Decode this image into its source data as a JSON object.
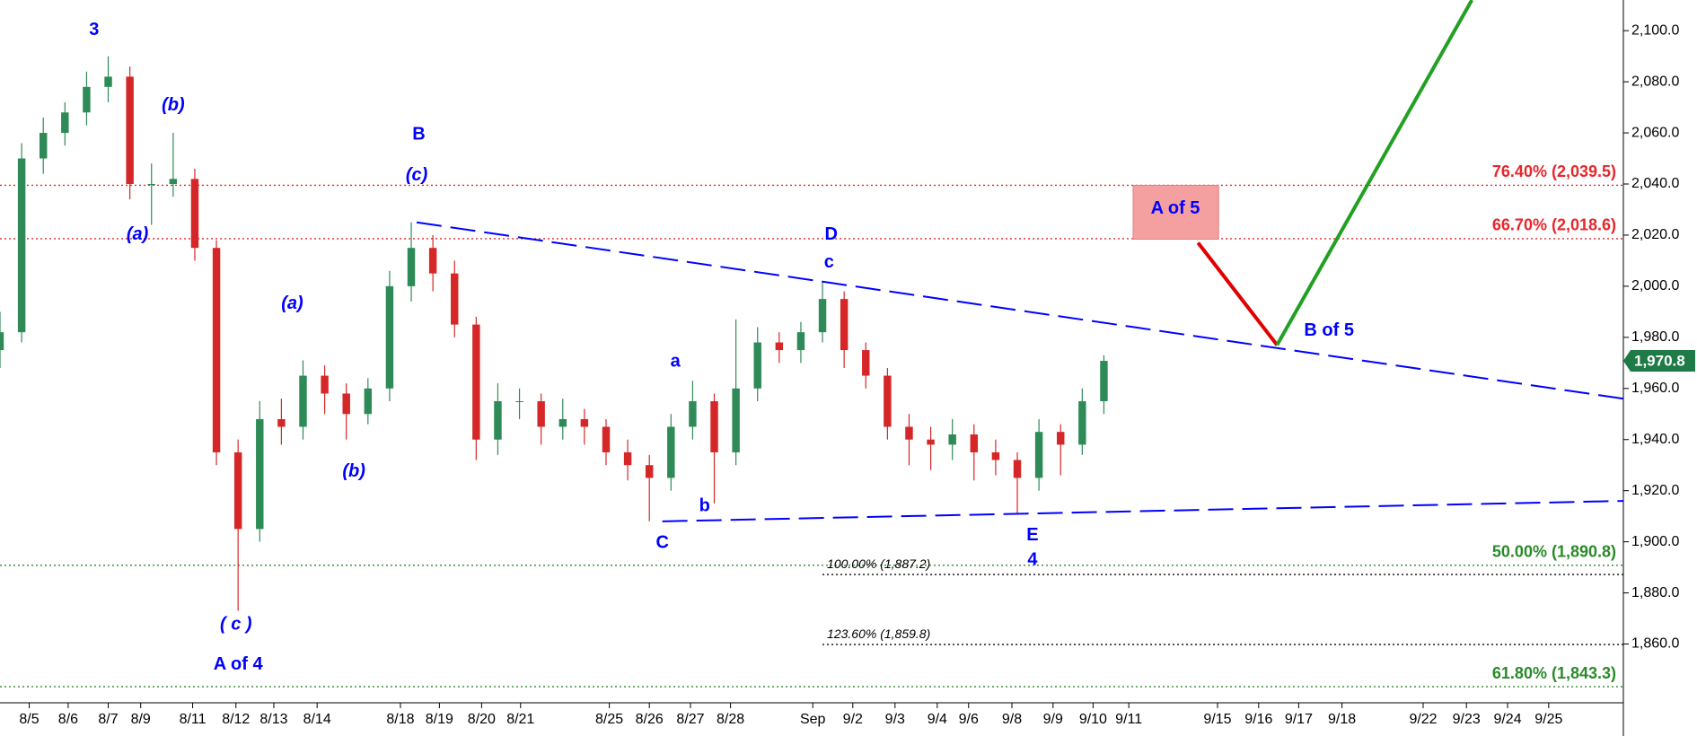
{
  "chart_data": {
    "type": "candlestick",
    "up_color": "#2e8b57",
    "down_color": "#d62728",
    "xlim": [
      0,
      150
    ],
    "xticks": [
      {
        "value": 2.7,
        "label": "8/5"
      },
      {
        "value": 6.3,
        "label": "8/6"
      },
      {
        "value": 10,
        "label": "8/7"
      },
      {
        "value": 13,
        "label": "8/9"
      },
      {
        "value": 17.8,
        "label": "8/11"
      },
      {
        "value": 21.8,
        "label": "8/12"
      },
      {
        "value": 25.3,
        "label": "8/13"
      },
      {
        "value": 29.3,
        "label": "8/14"
      },
      {
        "value": 37,
        "label": "8/18"
      },
      {
        "value": 40.6,
        "label": "8/19"
      },
      {
        "value": 44.5,
        "label": "8/20"
      },
      {
        "value": 48.1,
        "label": "8/21"
      },
      {
        "value": 56.3,
        "label": "8/25"
      },
      {
        "value": 60,
        "label": "8/26"
      },
      {
        "value": 63.8,
        "label": "8/27"
      },
      {
        "value": 67.5,
        "label": "8/28"
      },
      {
        "value": 75.1,
        "label": "Sep"
      },
      {
        "value": 78.8,
        "label": "9/2"
      },
      {
        "value": 82.7,
        "label": "9/3"
      },
      {
        "value": 86.6,
        "label": "9/4"
      },
      {
        "value": 89.5,
        "label": "9/6"
      },
      {
        "value": 93.5,
        "label": "9/8"
      },
      {
        "value": 97.3,
        "label": "9/9"
      },
      {
        "value": 101,
        "label": "9/10"
      },
      {
        "value": 104.3,
        "label": "9/11"
      },
      {
        "value": 112.5,
        "label": "9/15"
      },
      {
        "value": 116.3,
        "label": "9/16"
      },
      {
        "value": 120,
        "label": "9/17"
      },
      {
        "value": 124,
        "label": "9/18"
      },
      {
        "value": 131.5,
        "label": "9/22"
      },
      {
        "value": 135.5,
        "label": "9/23"
      },
      {
        "value": 139.3,
        "label": "9/24"
      },
      {
        "value": 143.1,
        "label": "9/25"
      }
    ],
    "ylim": [
      1837,
      2112
    ],
    "yticks": [
      {
        "value": 1860,
        "label": "1,860.0"
      },
      {
        "value": 1880,
        "label": "1,880.0"
      },
      {
        "value": 1900,
        "label": "1,900.0"
      },
      {
        "value": 1920,
        "label": "1,920.0"
      },
      {
        "value": 1940,
        "label": "1,940.0"
      },
      {
        "value": 1960,
        "label": "1,960.0"
      },
      {
        "value": 1980,
        "label": "1,980.0"
      },
      {
        "value": 2000,
        "label": "2,000.0"
      },
      {
        "value": 2020,
        "label": "2,020.0"
      },
      {
        "value": 2040,
        "label": "2,040.0"
      },
      {
        "value": 2060,
        "label": "2,060.0"
      },
      {
        "value": 2080,
        "label": "2,080.0"
      },
      {
        "value": 2100,
        "label": "2,100.0"
      }
    ],
    "x": [
      0,
      2,
      4,
      6,
      8,
      10,
      12,
      14,
      16,
      18,
      20,
      22,
      24,
      26,
      28,
      30,
      32,
      34,
      36,
      38,
      40,
      42,
      44,
      46,
      48,
      50,
      52,
      54,
      56,
      58,
      60,
      62,
      64,
      66,
      68,
      70,
      72,
      74,
      76,
      78,
      80,
      82,
      84,
      86,
      88,
      90,
      92,
      94,
      96,
      98,
      100,
      102
    ],
    "open": [
      1975,
      1982,
      2050,
      2060,
      2068,
      2078,
      2082,
      2040,
      2040,
      2042,
      2015,
      1935,
      1905,
      1948,
      1945,
      1965,
      1958,
      1950,
      1960,
      2000,
      2015,
      2005,
      1985,
      1940,
      1955,
      1955,
      1945,
      1948,
      1945,
      1935,
      1930,
      1925,
      1945,
      1955,
      1935,
      1960,
      1978,
      1975,
      1982,
      1995,
      1975,
      1965,
      1945,
      1940,
      1938,
      1942,
      1935,
      1932,
      1925,
      1943,
      1938,
      1955
    ],
    "high": [
      1990,
      2056,
      2066,
      2072,
      2084,
      2090,
      2086,
      2048,
      2060,
      2046,
      2018,
      1940,
      1955,
      1956,
      1971,
      1969,
      1962,
      1964,
      2006,
      2025,
      2020,
      2010,
      1988,
      1962,
      1960,
      1958,
      1956,
      1952,
      1948,
      1940,
      1934,
      1950,
      1963,
      1958,
      1987,
      1984,
      1982,
      1986,
      2002,
      1998,
      1978,
      1968,
      1950,
      1945,
      1948,
      1946,
      1940,
      1935,
      1948,
      1946,
      1960,
      1973
    ],
    "low": [
      1968,
      1978,
      2044,
      2055,
      2063,
      2072,
      2034,
      2024,
      2035,
      2010,
      1930,
      1873,
      1900,
      1938,
      1940,
      1950,
      1940,
      1946,
      1955,
      1994,
      1998,
      1980,
      1932,
      1934,
      1948,
      1938,
      1940,
      1938,
      1930,
      1924,
      1908,
      1920,
      1940,
      1915,
      1930,
      1955,
      1970,
      1970,
      1978,
      1968,
      1960,
      1940,
      1930,
      1928,
      1932,
      1924,
      1926,
      1911,
      1920,
      1926,
      1934,
      1950
    ],
    "close": [
      1982,
      2050,
      2060,
      2068,
      2078,
      2082,
      2040,
      2040,
      2042,
      2015,
      1935,
      1905,
      1948,
      1945,
      1965,
      1958,
      1950,
      1960,
      2000,
      2015,
      2005,
      1985,
      1940,
      1955,
      1955,
      1945,
      1948,
      1945,
      1935,
      1930,
      1925,
      1945,
      1955,
      1935,
      1960,
      1978,
      1975,
      1982,
      1995,
      1975,
      1965,
      1945,
      1940,
      1938,
      1942,
      1935,
      1932,
      1925,
      1943,
      1938,
      1955,
      1970.8
    ],
    "last_price": {
      "value": 1970.8,
      "label": "1,970.8"
    },
    "levels": [
      {
        "value": 2039.5,
        "label": "76.40% (2,039.5)",
        "color": "#e8262b"
      },
      {
        "value": 2018.6,
        "label": "66.70% (2,018.6)",
        "color": "#e8262b"
      },
      {
        "value": 1890.8,
        "label": "50.00% (1,890.8)",
        "color": "#2a8a2a"
      },
      {
        "value": 1843.3,
        "label": "61.80% (1,843.3)",
        "color": "#2a8a2a"
      },
      {
        "value": 1887.2,
        "label": "100.00% (1,887.2)",
        "color": "#000000",
        "x_start": 76
      },
      {
        "value": 1859.8,
        "label": "123.60% (1,859.8)",
        "color": "#000000",
        "x_start": 76
      }
    ],
    "trendlines": [
      {
        "x": [
          38.5,
          150
        ],
        "y": [
          2025,
          1956
        ],
        "color": "#0000ff",
        "dashed": true
      },
      {
        "x": [
          61.2,
          150
        ],
        "y": [
          1908,
          1916
        ],
        "color": "#0000ff",
        "dashed": true
      },
      {
        "x": [
          110.7,
          118
        ],
        "y": [
          2017,
          1977
        ],
        "color": "#e00000",
        "dashed": false
      },
      {
        "x": [
          118,
          136
        ],
        "y": [
          1977,
          2112
        ],
        "color": "#22a022",
        "dashed": false
      }
    ],
    "annotations": [
      "3",
      "(b)",
      "(a)",
      "( c )",
      "A of 4",
      "B",
      "(c)",
      "(a)",
      "(b)",
      "a",
      "b",
      "C",
      "D",
      "c",
      "E",
      "4",
      "B of 5",
      "A of 5"
    ]
  }
}
